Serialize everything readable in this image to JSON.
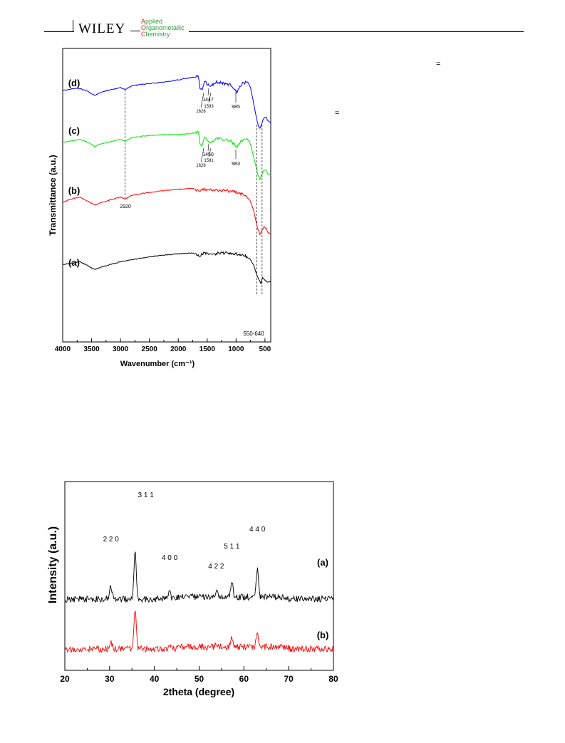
{
  "header": {
    "publisher": "WILEY",
    "journal_lines": [
      {
        "cap": "A",
        "rest": "pplied"
      },
      {
        "cap": "O",
        "rest": "rganometallic"
      },
      {
        "cap": "C",
        "rest": "hemistry"
      }
    ],
    "colors": {
      "journal_text": "#2e9e3e",
      "journal_caps": "#d42a2a"
    }
  },
  "side_marks": [
    "=",
    "="
  ],
  "chart_data": [
    {
      "type": "line",
      "xlabel": "Wavenumber (cm⁻¹)",
      "ylabel": "Transmittance (a.u.)",
      "xlim": [
        4000,
        400
      ],
      "x_ticks": [
        "4000",
        "3500",
        "3000",
        "2500",
        "2000",
        "1500",
        "1000",
        "500"
      ],
      "y_ticks": "none",
      "grid": false,
      "series": [
        {
          "name": "(a)",
          "color": "#000000",
          "x": [
            4000,
            3800,
            3700,
            3600,
            3450,
            3300,
            3000,
            2800,
            2500,
            2200,
            2000,
            1750,
            1630,
            1560,
            1400,
            1200,
            1000,
            850,
            760,
            700,
            650,
            600,
            570,
            540,
            500,
            450,
            400
          ],
          "y": [
            79,
            81,
            82,
            79,
            74,
            77,
            82,
            84,
            87,
            89,
            90,
            91,
            88,
            91,
            90,
            91,
            90,
            88,
            85,
            79,
            70,
            63,
            60,
            66,
            63,
            61,
            62
          ]
        },
        {
          "name": "(b)",
          "color": "#ff0000",
          "x": [
            4000,
            3800,
            3700,
            3600,
            3450,
            3300,
            3000,
            2920,
            2800,
            2500,
            2200,
            2000,
            1750,
            1630,
            1560,
            1400,
            1200,
            1000,
            850,
            760,
            700,
            650,
            620,
            590,
            560,
            520,
            480,
            450,
            400
          ],
          "y": [
            143,
            147,
            148,
            145,
            140,
            143,
            148,
            146,
            150,
            153,
            155,
            156,
            157,
            154,
            156,
            155,
            155,
            153,
            150,
            145,
            135,
            122,
            115,
            110,
            113,
            118,
            116,
            112,
            110
          ]
        },
        {
          "name": "(c)",
          "color": "#00e600",
          "x": [
            4000,
            3800,
            3700,
            3600,
            3450,
            3300,
            3000,
            2920,
            2800,
            2500,
            2200,
            2000,
            1800,
            1650,
            1628,
            1591,
            1550,
            1450,
            1350,
            1200,
            1100,
            983,
            900,
            800,
            750,
            700,
            650,
            620,
            590,
            560,
            530,
            480,
            450,
            400
          ],
          "y": [
            204,
            206,
            207,
            205,
            200,
            203,
            207,
            205,
            209,
            211,
            212,
            212,
            213,
            214,
            203,
            200,
            210,
            203,
            208,
            207,
            206,
            199,
            206,
            207,
            202,
            190,
            178,
            170,
            166,
            170,
            175,
            176,
            172,
            170
          ]
        },
        {
          "name": "(d)",
          "color": "#0000ff",
          "x": [
            4000,
            3800,
            3700,
            3600,
            3450,
            3300,
            3000,
            2920,
            2800,
            2500,
            2200,
            2000,
            1800,
            1650,
            1626,
            1593,
            1550,
            1447,
            1350,
            1200,
            1100,
            985,
            900,
            800,
            750,
            700,
            650,
            620,
            590,
            560,
            530,
            480,
            450,
            400
          ],
          "y": [
            257,
            259,
            259,
            257,
            252,
            256,
            260,
            258,
            262,
            264,
            266,
            268,
            270,
            271,
            259,
            257,
            266,
            261,
            266,
            264,
            263,
            255,
            264,
            266,
            260,
            245,
            230,
            222,
            218,
            222,
            228,
            230,
            226,
            224
          ]
        }
      ],
      "annotations": [
        {
          "label": "2920",
          "x": 2920
        },
        {
          "label": "1626",
          "x": 1626
        },
        {
          "label": "1593",
          "x": 1593
        },
        {
          "label": "1447",
          "x": 1447
        },
        {
          "label": "985",
          "x": 985
        },
        {
          "label": "1628",
          "x": 1628
        },
        {
          "label": "1591",
          "x": 1591
        },
        {
          "label": "1450",
          "x": 1450
        },
        {
          "label": "983",
          "x": 983
        },
        {
          "label": "550-640",
          "x_range": [
            640,
            550
          ]
        }
      ],
      "curve_labels": [
        "(a)",
        "(b)",
        "(c)",
        "(d)"
      ]
    },
    {
      "type": "line",
      "xlabel": "2theta (degree)",
      "ylabel": "Intensity (a.u.)",
      "xlim": [
        20,
        80
      ],
      "x_ticks": [
        "20",
        "30",
        "40",
        "50",
        "60",
        "70",
        "80"
      ],
      "y_ticks": "none",
      "grid": false,
      "peaks": [
        {
          "label": "2 2 0",
          "x": 30.3
        },
        {
          "label": "3 1 1",
          "x": 35.7
        },
        {
          "label": "4 0 0",
          "x": 43.4
        },
        {
          "label": "4 2 2",
          "x": 53.8
        },
        {
          "label": "5 1 1",
          "x": 57.3
        },
        {
          "label": "4 4 0",
          "x": 63.0
        }
      ],
      "series": [
        {
          "name": "(a)",
          "color": "#000000",
          "baseline": 100,
          "peak_heights": [
            18,
            70,
            12,
            8,
            24,
            38
          ]
        },
        {
          "name": "(b)",
          "color": "#ff0000",
          "baseline": 30,
          "peak_heights": [
            10,
            58,
            5,
            4,
            12,
            20
          ]
        }
      ],
      "curve_labels": [
        "(a)",
        "(b)"
      ]
    }
  ]
}
